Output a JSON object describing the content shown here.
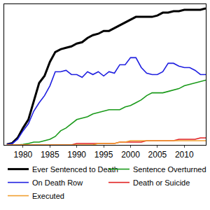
{
  "chart_data": {
    "type": "line",
    "x": [
      1977,
      1978,
      1979,
      1980,
      1981,
      1982,
      1983,
      1984,
      1985,
      1986,
      1987,
      1988,
      1989,
      1990,
      1991,
      1992,
      1993,
      1994,
      1995,
      1996,
      1997,
      1998,
      1999,
      2000,
      2001,
      2002,
      2003,
      2004,
      2005,
      2006,
      2007,
      2008,
      2009,
      2010,
      2011,
      2012,
      2013,
      2014
    ],
    "series": [
      {
        "name": "Ever Sentenced to Death",
        "color": "#000000",
        "values": [
          0.4,
          1.3,
          5,
          12,
          18,
          31,
          44,
          49,
          59,
          66,
          68,
          69,
          70,
          72,
          73,
          76,
          78,
          79,
          81,
          81,
          83,
          85,
          87,
          89,
          91,
          91,
          91,
          91,
          92,
          94,
          94,
          95,
          95,
          96,
          96,
          96,
          96,
          97
        ]
      },
      {
        "name": "Sentence Overturned",
        "color": "#1a9a1a",
        "values": [
          0,
          0,
          0,
          0.4,
          1,
          2,
          2,
          3,
          4,
          6,
          10,
          12,
          15,
          18,
          19,
          20,
          22,
          23,
          24,
          25,
          25,
          25,
          27,
          28,
          30,
          32,
          35,
          37,
          37,
          37,
          38,
          39,
          40,
          42,
          43,
          44,
          45,
          46
        ]
      },
      {
        "name": "On Death Row",
        "color": "#1f1fe0",
        "values": [
          0.4,
          1,
          4,
          10,
          15,
          24,
          30,
          35,
          42,
          52,
          52,
          53,
          50,
          50,
          48,
          52,
          50,
          52,
          49,
          52,
          51,
          57,
          57,
          62,
          62,
          55,
          51,
          50,
          50,
          52,
          58,
          58,
          56,
          55,
          55,
          53,
          50,
          50
        ]
      },
      {
        "name": "Death or Suicide",
        "color": "#e02020",
        "values": [
          0,
          0,
          0,
          0,
          0,
          0,
          0,
          0,
          0,
          0,
          0,
          0,
          0,
          1,
          1,
          1,
          1,
          1,
          1,
          1,
          1,
          2,
          2,
          2,
          2,
          2,
          3,
          3,
          3,
          3,
          3,
          3,
          4,
          4,
          4,
          4,
          5,
          5
        ]
      },
      {
        "name": "Executed",
        "color": "#f0a030",
        "values": [
          0,
          0,
          0,
          0,
          0,
          0,
          0,
          0,
          0,
          0,
          0,
          0,
          0,
          0,
          0,
          0,
          0,
          1,
          1,
          1,
          1,
          2,
          2,
          3,
          3,
          3,
          3,
          3,
          3,
          3,
          3,
          3,
          3,
          3,
          3,
          3,
          3,
          3
        ]
      }
    ],
    "xlim": [
      1976.5,
      2014
    ],
    "xticks": [
      1980,
      1985,
      1990,
      1995,
      2000,
      2005,
      2010
    ],
    "ylim": [
      0,
      100
    ],
    "legend": "bottom",
    "tick_labels": "x"
  }
}
